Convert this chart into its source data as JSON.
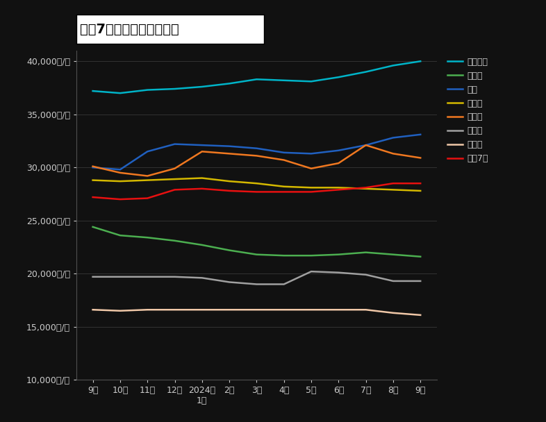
{
  "title": "主要7区平均募集賃料推移",
  "x_labels": [
    "9月",
    "10月",
    "11月",
    "12月",
    "2024年\n1月",
    "2月",
    "3月",
    "4月",
    "5月",
    "6月",
    "7月",
    "8月",
    "9月"
  ],
  "ylim": [
    10000,
    41000
  ],
  "yticks": [
    10000,
    15000,
    20000,
    25000,
    30000,
    35000,
    40000
  ],
  "ytick_labels": [
    "10,000円/坪",
    "15,000円/坪",
    "20,000円/坪",
    "25,000円/坪",
    "30,000円/坪",
    "35,000円/坪",
    "40,000円/坪"
  ],
  "series": [
    {
      "name": "千代田区",
      "color": "#00B4C8",
      "values": [
        37200,
        37000,
        37300,
        37400,
        37600,
        37900,
        38300,
        38200,
        38100,
        38500,
        39000,
        39600,
        40000
      ]
    },
    {
      "name": "中央区",
      "color": "#4CAF50",
      "values": [
        24400,
        23600,
        23400,
        23100,
        22700,
        22200,
        21800,
        21700,
        21700,
        21800,
        22000,
        21800,
        21600
      ]
    },
    {
      "name": "港区",
      "color": "#2060C0",
      "values": [
        30000,
        29800,
        31500,
        32200,
        32100,
        32000,
        31800,
        31400,
        31300,
        31600,
        32100,
        32800,
        33100
      ]
    },
    {
      "name": "新宿区",
      "color": "#D4B800",
      "values": [
        28800,
        28700,
        28800,
        28900,
        29000,
        28700,
        28500,
        28200,
        28100,
        28100,
        28000,
        27900,
        27800
      ]
    },
    {
      "name": "渋谷区",
      "color": "#F07820",
      "values": [
        30100,
        29500,
        29200,
        29900,
        31500,
        31300,
        31100,
        30700,
        29900,
        30400,
        32100,
        31300,
        30900
      ]
    },
    {
      "name": "品川区",
      "color": "#A0A0A0",
      "values": [
        19700,
        19700,
        19700,
        19700,
        19600,
        19200,
        19000,
        19000,
        20200,
        20100,
        19900,
        19300,
        19300
      ]
    },
    {
      "name": "江東区",
      "color": "#F0C8A8",
      "values": [
        16600,
        16500,
        16600,
        16600,
        16600,
        16600,
        16600,
        16600,
        16600,
        16600,
        16600,
        16300,
        16100
      ]
    },
    {
      "name": "主要7区",
      "color": "#E81010",
      "values": [
        27200,
        27000,
        27100,
        27900,
        28000,
        27800,
        27700,
        27700,
        27700,
        27900,
        28100,
        28500,
        28500
      ]
    }
  ],
  "background_color": "#111111",
  "plot_bg_color": "#111111",
  "text_color": "#cccccc",
  "grid_color": "#404040",
  "spine_color": "#505050",
  "line_width": 1.8,
  "title_fontsize": 14,
  "tick_fontsize": 9,
  "legend_fontsize": 9
}
